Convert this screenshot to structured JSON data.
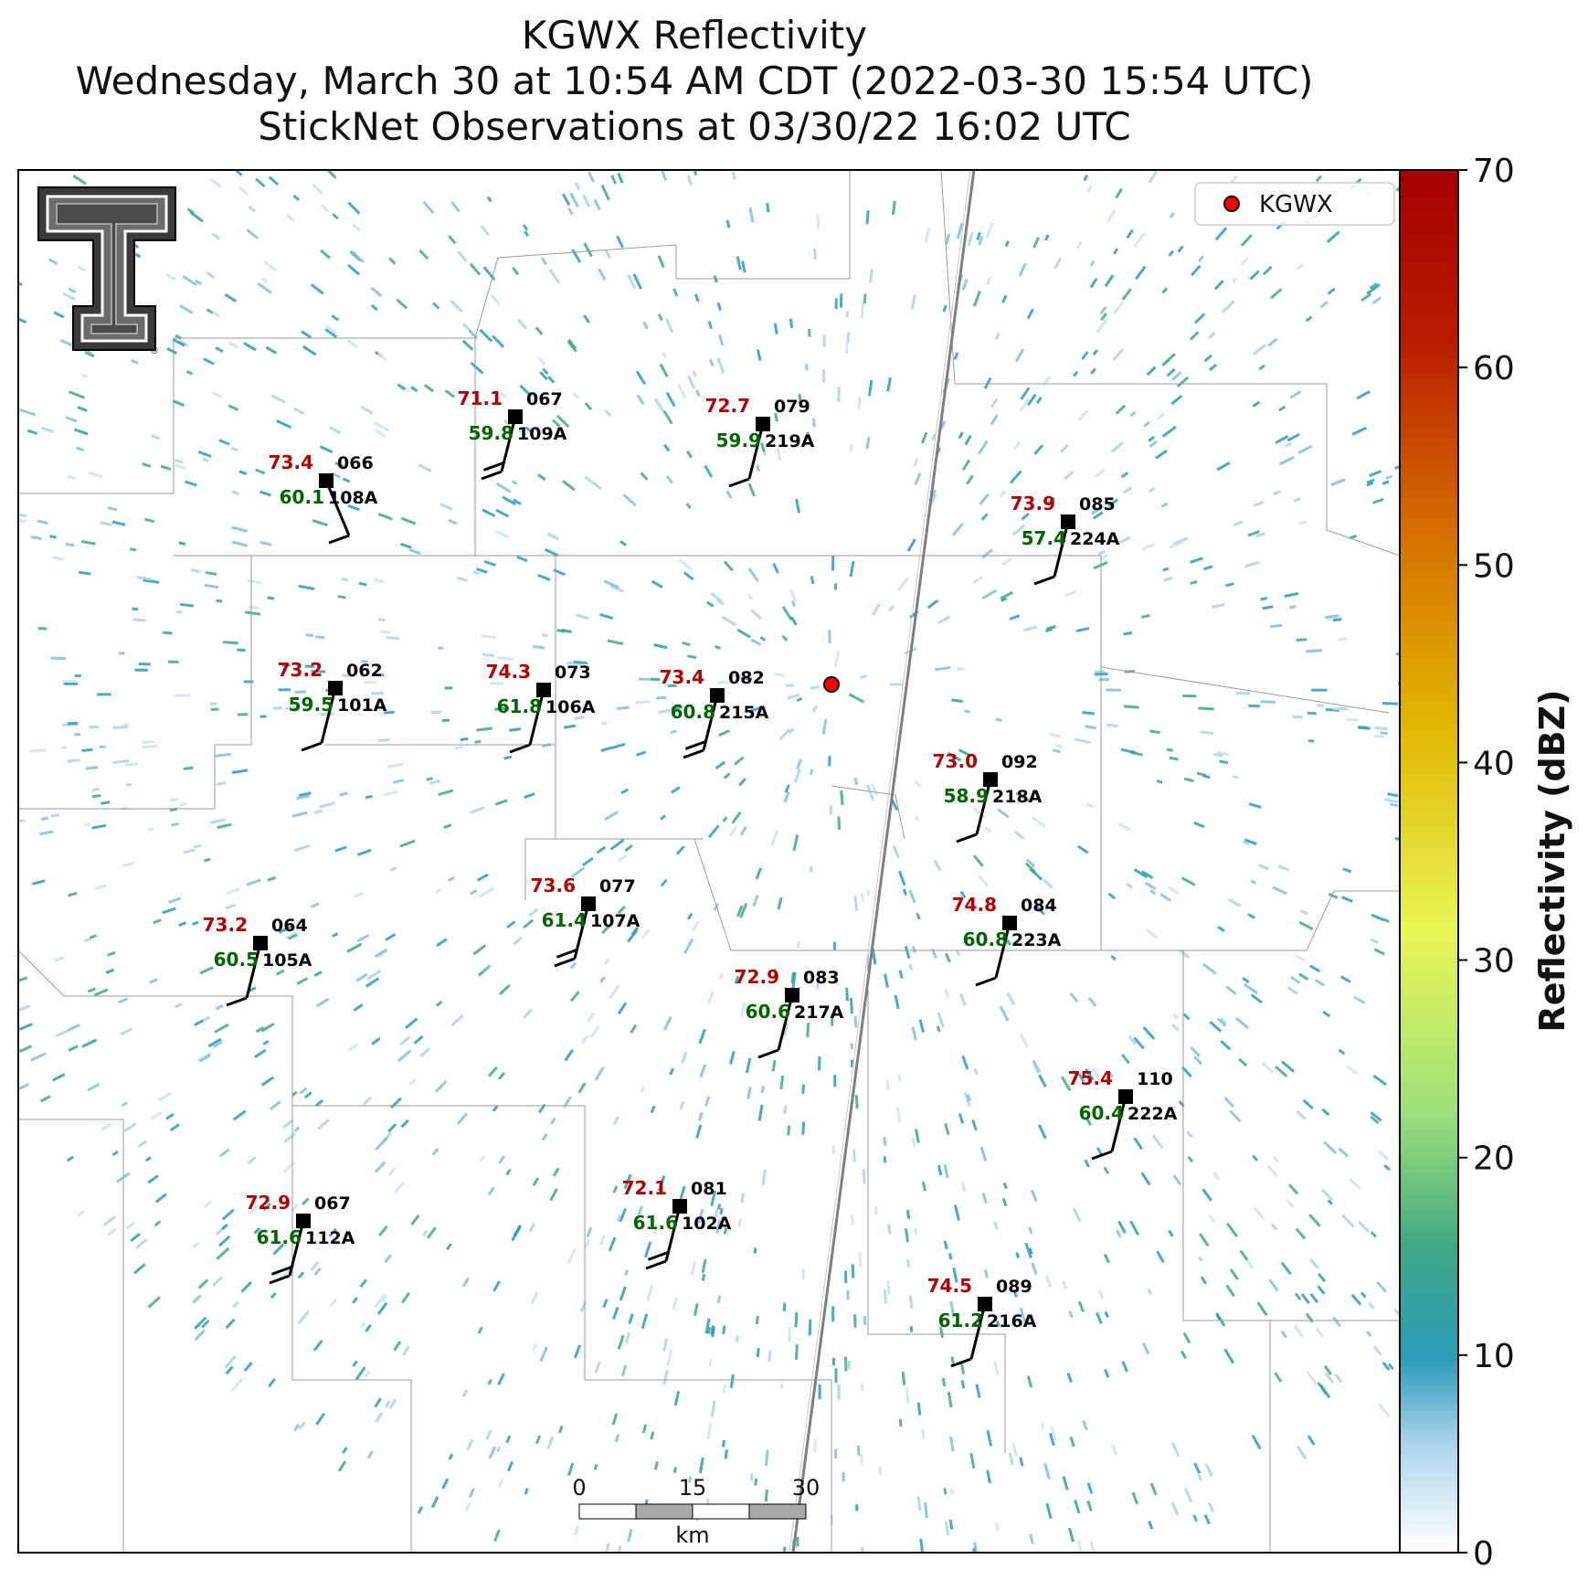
{
  "title": {
    "line1": "KGWX Reflectivity",
    "line2": "Wednesday, March 30 at 10:54 AM CDT (2022-03-30 15:54 UTC)",
    "line3": "StickNet Observations at 03/30/22 16:02 UTC"
  },
  "legend": {
    "radar_label": "KGWX",
    "marker_color": "#ff0000"
  },
  "colorbar": {
    "label": "Reflectivity (dBZ)",
    "ticks": [
      "0",
      "10",
      "20",
      "30",
      "40",
      "50",
      "60",
      "70"
    ],
    "range": [
      0,
      70
    ],
    "colors": [
      "#ffffff",
      "#a8d3ea",
      "#2a9bb9",
      "#3fa884",
      "#9fe07a",
      "#e8f554",
      "#e1b500",
      "#d56d00",
      "#b81a00",
      "#a40000"
    ]
  },
  "scale_bar": {
    "ticks": [
      "0",
      "15",
      "30"
    ],
    "unit": "km"
  },
  "stations": [
    {
      "id": "109A",
      "temp": "71.1",
      "dew": "59.8",
      "dir": "067"
    },
    {
      "id": "219A",
      "temp": "72.7",
      "dew": "59.9",
      "dir": "079"
    },
    {
      "id": "108A",
      "temp": "73.4",
      "dew": "60.1",
      "dir": "066"
    },
    {
      "id": "224A",
      "temp": "73.9",
      "dew": "57.4",
      "dir": "085"
    },
    {
      "id": "101A",
      "temp": "73.2",
      "dew": "59.5",
      "dir": "062"
    },
    {
      "id": "106A",
      "temp": "74.3",
      "dew": "61.8",
      "dir": "073"
    },
    {
      "id": "215A",
      "temp": "73.4",
      "dew": "60.8",
      "dir": "082"
    },
    {
      "id": "218A",
      "temp": "73.0",
      "dew": "58.9",
      "dir": "092"
    },
    {
      "id": "107A",
      "temp": "73.6",
      "dew": "61.4",
      "dir": "077"
    },
    {
      "id": "223A",
      "temp": "74.8",
      "dew": "60.8",
      "dir": "084"
    },
    {
      "id": "105A",
      "temp": "73.2",
      "dew": "60.5",
      "dir": "064"
    },
    {
      "id": "217A",
      "temp": "72.9",
      "dew": "60.6",
      "dir": "083"
    },
    {
      "id": "222A",
      "temp": "75.4",
      "dew": "60.4",
      "dir": "110"
    },
    {
      "id": "102A",
      "temp": "72.1",
      "dew": "61.6",
      "dir": "081"
    },
    {
      "id": "112A",
      "temp": "72.9",
      "dew": "61.6",
      "dir": "067"
    },
    {
      "id": "216A",
      "temp": "74.5",
      "dew": "61.2",
      "dir": "089"
    }
  ]
}
